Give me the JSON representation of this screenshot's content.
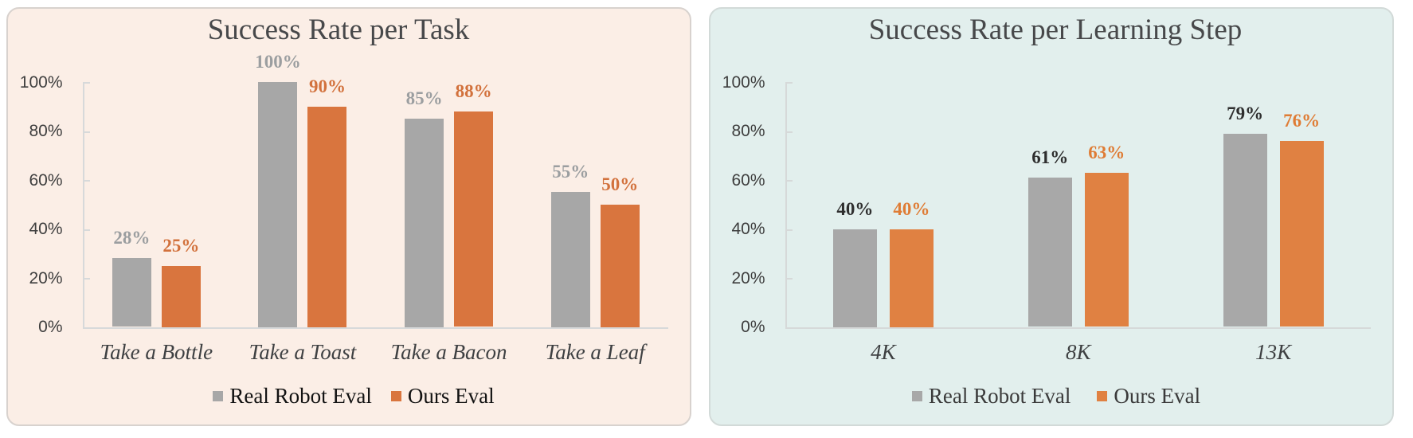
{
  "page_background": "#ffffff",
  "chart_data": [
    {
      "type": "bar",
      "title": "Success Rate per Task",
      "categories": [
        "Take a Bottle",
        "Take a Toast",
        "Take a Bacon",
        "Take a Leaf"
      ],
      "series": [
        {
          "name": "Real Robot Eval",
          "color": "#a7a7a7",
          "label_color": "#9b9ea0",
          "values": [
            28,
            100,
            85,
            55
          ],
          "labels": [
            "28%",
            "100%",
            "85%",
            "55%"
          ]
        },
        {
          "name": "Ours Eval",
          "color": "#d9753e",
          "label_color": "#d2713c",
          "values": [
            25,
            90,
            88,
            50
          ],
          "labels": [
            "25%",
            "90%",
            "88%",
            "50%"
          ]
        }
      ],
      "y_ticks": [
        "0%",
        "20%",
        "40%",
        "60%",
        "80%",
        "100%"
      ],
      "ylim": [
        0,
        100
      ],
      "xlabel": "",
      "ylabel": "",
      "grid": false,
      "legend_position": "bottom",
      "legend": [
        "Real Robot Eval",
        "Ours Eval"
      ],
      "panel_background": "#fbeee6",
      "panel_border_color": "#d8d2ce",
      "axis_color": "#d7d9da",
      "title_color": "#47484a",
      "tick_label_color": "#3e3e3e",
      "category_label_color": "#3e4042",
      "legend_text_color": "#121212"
    },
    {
      "type": "bar",
      "title": "Success Rate per Learning Step",
      "categories": [
        "4K",
        "8K",
        "13K"
      ],
      "series": [
        {
          "name": "Real Robot Eval",
          "color": "#a8a8a8",
          "label_color": "#2e2e2e",
          "values": [
            40,
            61,
            79
          ],
          "labels": [
            "40%",
            "61%",
            "79%"
          ]
        },
        {
          "name": "Ours Eval",
          "color": "#e08142",
          "label_color": "#df7c35",
          "values": [
            40,
            63,
            76
          ],
          "labels": [
            "40%",
            "63%",
            "76%"
          ]
        }
      ],
      "y_ticks": [
        "0%",
        "20%",
        "40%",
        "60%",
        "80%",
        "100%"
      ],
      "ylim": [
        0,
        100
      ],
      "xlabel": "",
      "ylabel": "",
      "grid": false,
      "legend_position": "bottom",
      "legend": [
        "Real Robot Eval",
        "Ours Eval"
      ],
      "panel_background": "#e2efed",
      "panel_border_color": "#d2dad8",
      "axis_color": "#d6d9d9",
      "title_color": "#47484a",
      "tick_label_color": "#3e3e3e",
      "category_label_color": "#3e4042",
      "legend_text_color": "#3a3a3a"
    }
  ]
}
